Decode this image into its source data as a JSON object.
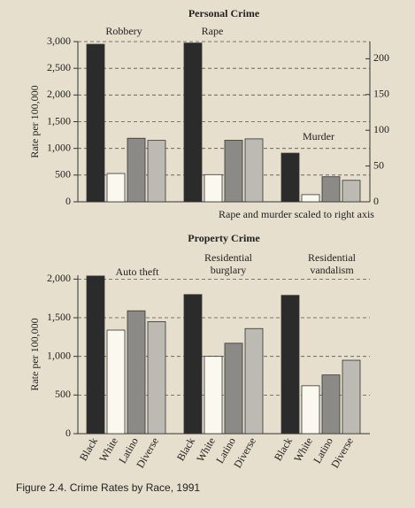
{
  "caption": "Figure 2.4. Crime Rates by Race, 1991",
  "chart_data": [
    {
      "type": "bar",
      "title": "Personal Crime",
      "y_label": "Rate per 100,000",
      "groups": [
        [
          "Robbery"
        ],
        [
          "Rape"
        ],
        [
          "Murder"
        ]
      ],
      "group_axis": [
        "y",
        "y2",
        "y2"
      ],
      "annotation": "Rape and murder scaled to right axis",
      "series": [
        {
          "name": "Black",
          "color": "#2b2b2b",
          "values": [
            2950,
            222,
            68
          ]
        },
        {
          "name": "White",
          "color": "#fbf8f0",
          "values": [
            530,
            38,
            10
          ]
        },
        {
          "name": "Latino",
          "color": "#8c8a86",
          "values": [
            1190,
            86,
            35
          ]
        },
        {
          "name": "Diverse",
          "color": "#bdbab3",
          "values": [
            1150,
            88,
            30
          ]
        }
      ],
      "ylim": [
        0,
        3000
      ],
      "yticks": [
        0,
        500,
        {
          "value": 1000,
          "label": "1,000"
        },
        {
          "value": 1500,
          "label": "1,500"
        },
        {
          "value": 2000,
          "label": "2,000"
        },
        {
          "value": 2500,
          "label": "2,500"
        },
        {
          "value": 3000,
          "label": "3,000"
        }
      ],
      "y2lim": [
        0,
        224
      ],
      "y2ticks": [
        0,
        50,
        100,
        150,
        200
      ],
      "grid": true,
      "show_x_labels": false
    },
    {
      "type": "bar",
      "title": "Property Crime",
      "y_label": "Rate per 100,000",
      "groups": [
        [
          "Auto theft"
        ],
        [
          "Residential",
          "burglary"
        ],
        [
          "Residential",
          "vandalism"
        ]
      ],
      "series": [
        {
          "name": "Black",
          "color": "#2b2b2b",
          "values": [
            2040,
            1800,
            1790
          ]
        },
        {
          "name": "White",
          "color": "#fbf8f0",
          "values": [
            1340,
            1000,
            620
          ]
        },
        {
          "name": "Latino",
          "color": "#8c8a86",
          "values": [
            1590,
            1170,
            760
          ]
        },
        {
          "name": "Diverse",
          "color": "#bdbab3",
          "values": [
            1450,
            1360,
            950
          ]
        }
      ],
      "ylim": [
        0,
        2050
      ],
      "yticks": [
        0,
        500,
        {
          "value": 1000,
          "label": "1,000"
        },
        {
          "value": 1500,
          "label": "1,500"
        },
        {
          "value": 2000,
          "label": "2,000"
        }
      ],
      "grid": true,
      "show_x_labels": true
    }
  ]
}
